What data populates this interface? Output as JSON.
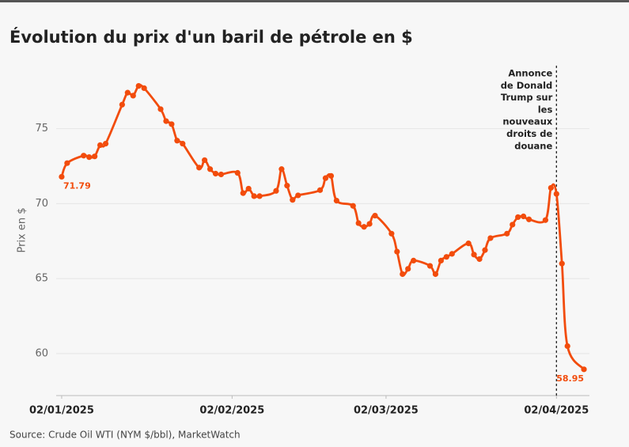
{
  "chart_data": {
    "type": "line",
    "title": "Évolution du prix d'un baril de pétrole en $",
    "y_label": "Prix en $",
    "source": "Source: Crude Oil WTI (NYM $/bbl), MarketWatch",
    "x": [
      "2025-01-02",
      "2025-01-03",
      "2025-01-06",
      "2025-01-07",
      "2025-01-08",
      "2025-01-09",
      "2025-01-10",
      "2025-01-13",
      "2025-01-14",
      "2025-01-15",
      "2025-01-16",
      "2025-01-17",
      "2025-01-20",
      "2025-01-21",
      "2025-01-22",
      "2025-01-23",
      "2025-01-24",
      "2025-01-27",
      "2025-01-28",
      "2025-01-29",
      "2025-01-30",
      "2025-01-31",
      "2025-02-03",
      "2025-02-04",
      "2025-02-05",
      "2025-02-06",
      "2025-02-07",
      "2025-02-10",
      "2025-02-11",
      "2025-02-12",
      "2025-02-13",
      "2025-02-14",
      "2025-02-18",
      "2025-02-19",
      "2025-02-20",
      "2025-02-21",
      "2025-02-24",
      "2025-02-25",
      "2025-02-26",
      "2025-02-27",
      "2025-02-28",
      "2025-03-03",
      "2025-03-04",
      "2025-03-05",
      "2025-03-06",
      "2025-03-07",
      "2025-03-10",
      "2025-03-11",
      "2025-03-12",
      "2025-03-13",
      "2025-03-14",
      "2025-03-17",
      "2025-03-18",
      "2025-03-19",
      "2025-03-20",
      "2025-03-21",
      "2025-03-24",
      "2025-03-25",
      "2025-03-26",
      "2025-03-27",
      "2025-03-28",
      "2025-03-31",
      "2025-04-01",
      "2025-04-02",
      "2025-04-03",
      "2025-04-04",
      "2025-04-07"
    ],
    "series": [
      {
        "name": "WTI",
        "color": "#f24c0c",
        "values": [
          71.79,
          72.7,
          73.2,
          73.1,
          73.15,
          73.9,
          74.0,
          76.6,
          77.4,
          77.2,
          77.85,
          77.7,
          76.3,
          75.5,
          75.3,
          74.2,
          74.0,
          72.4,
          72.9,
          72.3,
          72.0,
          71.95,
          72.05,
          70.7,
          71.0,
          70.5,
          70.5,
          70.85,
          72.3,
          71.2,
          70.25,
          70.55,
          70.9,
          71.7,
          71.85,
          70.2,
          69.85,
          68.7,
          68.45,
          68.65,
          69.2,
          68.0,
          66.8,
          65.3,
          65.65,
          66.2,
          65.85,
          65.3,
          66.2,
          66.45,
          66.65,
          67.35,
          66.6,
          66.3,
          66.9,
          67.7,
          68.0,
          68.6,
          69.1,
          69.15,
          68.95,
          68.9,
          71.05,
          70.65,
          66.0,
          60.5,
          58.95
        ]
      }
    ],
    "show_end_labels": true,
    "xlim": [
      "2025-01-01",
      "2025-04-08"
    ],
    "xticks": [
      {
        "value": "2025-01-02",
        "label": "02/01/2025"
      },
      {
        "value": "2025-02-02",
        "label": "02/02/2025"
      },
      {
        "value": "2025-03-02",
        "label": "02/03/2025"
      },
      {
        "value": "2025-04-02",
        "label": "02/04/2025"
      }
    ],
    "ylim": [
      57.2,
      79.2
    ],
    "yticks": [
      60,
      65,
      70,
      75
    ],
    "grid": true,
    "annotation": {
      "x": "2025-04-02",
      "lines": [
        "Annonce",
        "de Donald",
        "Trump sur",
        "les",
        "nouveaux",
        "droits de",
        "douane"
      ]
    }
  }
}
